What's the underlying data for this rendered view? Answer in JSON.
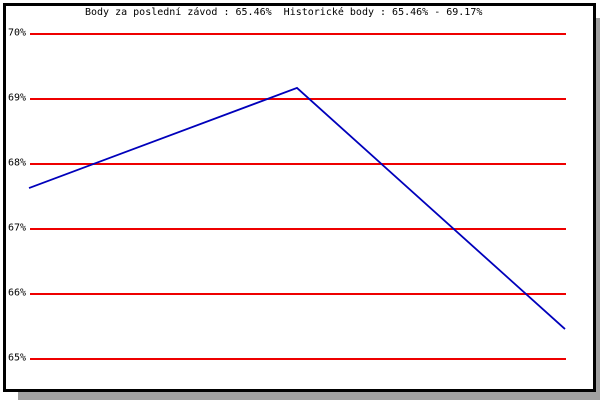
{
  "window": {
    "background": "#ffffff",
    "frame_border_color": "#000000",
    "frame_shadow_color": "#a0a0a0"
  },
  "chart_data": {
    "type": "line",
    "title": "Body za poslední závod : 65.46%  Historické body : 65.46% - 69.17%",
    "title_parts": {
      "last_race_label": "Body za poslední závod",
      "last_race_value": "65.46%",
      "historical_label": "Historické body",
      "historical_range": "65.46% - 69.17%"
    },
    "x": [
      0,
      1,
      2
    ],
    "x_axis": {
      "labels_visible": false
    },
    "series": [
      {
        "name": "points-percent",
        "color": "#0000bb",
        "values": [
          67.63,
          69.17,
          65.46
        ]
      }
    ],
    "y_axis": {
      "ticks": [
        {
          "value": 70,
          "label": "70%"
        },
        {
          "value": 69,
          "label": "69%"
        },
        {
          "value": 68,
          "label": "68%"
        },
        {
          "value": 67,
          "label": "67%"
        },
        {
          "value": 66,
          "label": "66%"
        },
        {
          "value": 65,
          "label": "65%"
        }
      ],
      "ylim": [
        64.5,
        70.5
      ]
    },
    "grid": {
      "show": true,
      "color": "#ee0000"
    },
    "legend": "none"
  }
}
